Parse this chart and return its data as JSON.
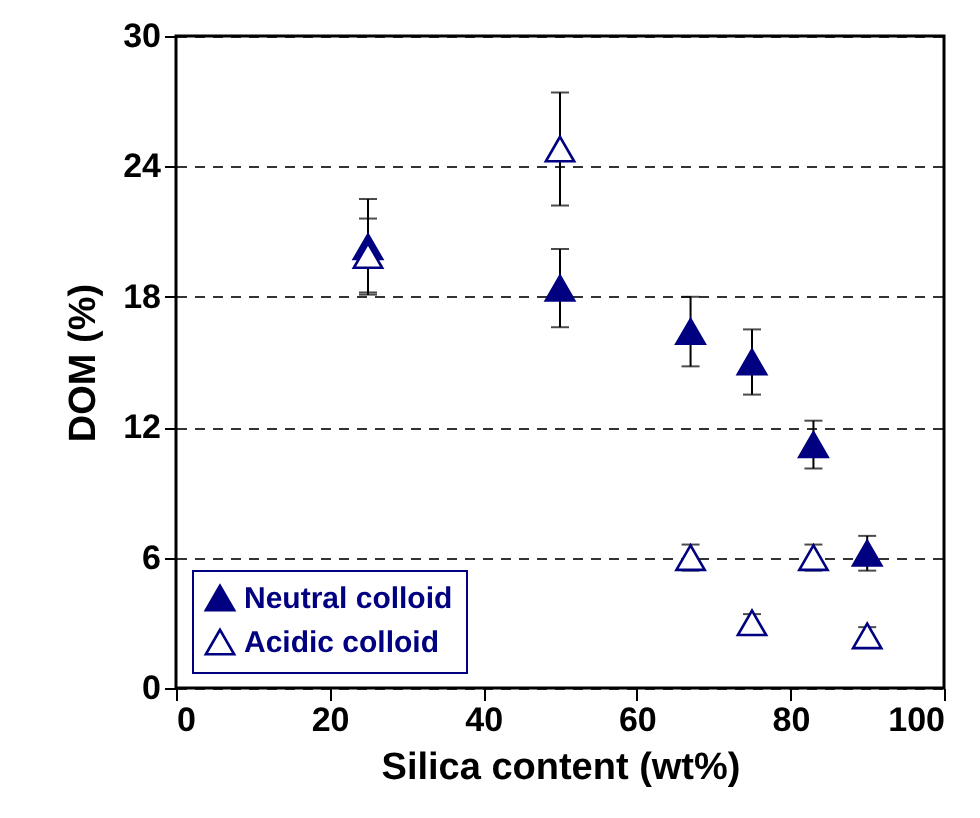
{
  "chart_data": {
    "type": "scatter",
    "xlabel": "Silica content (wt%)",
    "ylabel": "DOM (%)",
    "x": [
      25,
      50,
      67,
      75,
      83,
      90
    ],
    "series": [
      {
        "name": "Neutral colloid",
        "color": "#000080",
        "values": [
          20.3,
          18.4,
          16.4,
          15.0,
          11.2,
          6.2
        ],
        "errors": [
          2.2,
          1.8,
          1.6,
          1.5,
          1.1,
          0.8
        ]
      },
      {
        "name": "Acidic colloid",
        "color": "#000080",
        "values": [
          19.9,
          24.8,
          6.0,
          3.0,
          6.0,
          2.4
        ],
        "errors": [
          1.7,
          2.6,
          0.6,
          0.4,
          0.6,
          0.4
        ]
      }
    ],
    "xlim": [
      0,
      100
    ],
    "xticks": [
      0,
      20,
      40,
      60,
      80,
      100
    ],
    "ylim": [
      0,
      30
    ],
    "yticks": [
      0,
      6,
      12,
      18,
      24,
      30
    ],
    "grid": "y",
    "legend": "bottom left",
    "marker": "triangle"
  }
}
